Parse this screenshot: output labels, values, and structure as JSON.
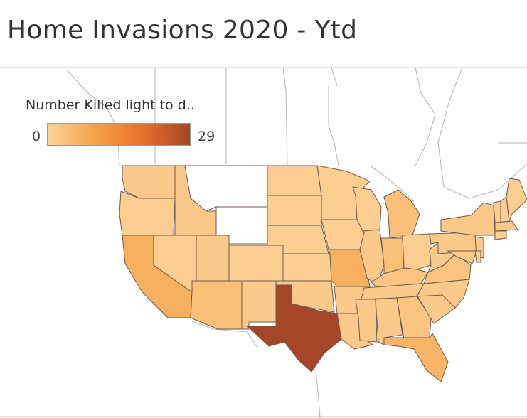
{
  "title": "Home Invasions 2020 - Ytd",
  "legend": {
    "title": "Number Killed light to d..",
    "min": "0",
    "max": "29",
    "colors": [
      "#fdd39a",
      "#f5a24a",
      "#e8702a",
      "#a54628"
    ]
  },
  "map": {
    "no_data_color": "#ffffff",
    "states": [
      {
        "name": "Washington",
        "value": 2
      },
      {
        "name": "Oregon",
        "value": 1
      },
      {
        "name": "California",
        "value": 7
      },
      {
        "name": "Nevada",
        "value": 1
      },
      {
        "name": "Idaho",
        "value": 2
      },
      {
        "name": "Montana",
        "value": null
      },
      {
        "name": "Wyoming",
        "value": null
      },
      {
        "name": "Utah",
        "value": 2
      },
      {
        "name": "Arizona",
        "value": 4
      },
      {
        "name": "Colorado",
        "value": 1
      },
      {
        "name": "New Mexico",
        "value": 2
      },
      {
        "name": "North Dakota",
        "value": 1
      },
      {
        "name": "South Dakota",
        "value": 1
      },
      {
        "name": "Nebraska",
        "value": 1
      },
      {
        "name": "Kansas",
        "value": 1
      },
      {
        "name": "Oklahoma",
        "value": 2
      },
      {
        "name": "Texas",
        "value": 29
      },
      {
        "name": "Minnesota",
        "value": 1
      },
      {
        "name": "Iowa",
        "value": 1
      },
      {
        "name": "Missouri",
        "value": 7
      },
      {
        "name": "Arkansas",
        "value": 2
      },
      {
        "name": "Louisiana",
        "value": 2
      },
      {
        "name": "Wisconsin",
        "value": 1
      },
      {
        "name": "Illinois",
        "value": 2
      },
      {
        "name": "Michigan",
        "value": 4
      },
      {
        "name": "Indiana",
        "value": 4
      },
      {
        "name": "Ohio",
        "value": 1
      },
      {
        "name": "Kentucky",
        "value": 3
      },
      {
        "name": "Tennessee",
        "value": 2
      },
      {
        "name": "Mississippi",
        "value": 2
      },
      {
        "name": "Alabama",
        "value": 2
      },
      {
        "name": "Georgia",
        "value": 3
      },
      {
        "name": "Florida",
        "value": 6
      },
      {
        "name": "South Carolina",
        "value": 2
      },
      {
        "name": "North Carolina",
        "value": 2
      },
      {
        "name": "Virginia",
        "value": 3
      },
      {
        "name": "West Virginia",
        "value": 2
      },
      {
        "name": "Pennsylvania",
        "value": 2
      },
      {
        "name": "New York",
        "value": 2
      },
      {
        "name": "Vermont",
        "value": 1
      },
      {
        "name": "New Hampshire",
        "value": 1
      },
      {
        "name": "Maine",
        "value": 1
      },
      {
        "name": "Massachusetts",
        "value": 2
      },
      {
        "name": "Connecticut",
        "value": 1
      },
      {
        "name": "New Jersey",
        "value": 2
      },
      {
        "name": "Maryland",
        "value": 2
      },
      {
        "name": "Delaware",
        "value": 1
      }
    ]
  }
}
